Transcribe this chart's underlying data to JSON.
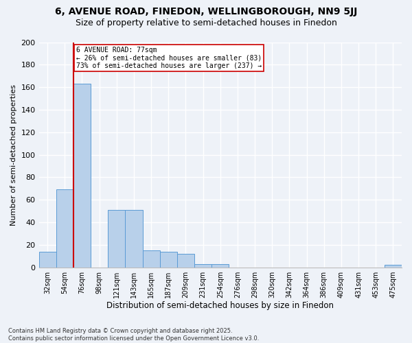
{
  "title1": "6, AVENUE ROAD, FINEDON, WELLINGBOROUGH, NN9 5JJ",
  "title2": "Size of property relative to semi-detached houses in Finedon",
  "xlabel": "Distribution of semi-detached houses by size in Finedon",
  "ylabel": "Number of semi-detached properties",
  "categories": [
    "32sqm",
    "54sqm",
    "76sqm",
    "98sqm",
    "121sqm",
    "143sqm",
    "165sqm",
    "187sqm",
    "209sqm",
    "231sqm",
    "254sqm",
    "276sqm",
    "298sqm",
    "320sqm",
    "342sqm",
    "364sqm",
    "386sqm",
    "409sqm",
    "431sqm",
    "453sqm",
    "475sqm"
  ],
  "values": [
    14,
    69,
    163,
    0,
    51,
    51,
    15,
    14,
    12,
    3,
    3,
    0,
    0,
    0,
    0,
    0,
    0,
    0,
    0,
    0,
    2
  ],
  "bar_color": "#b8d0ea",
  "bar_edge_color": "#5b9bd5",
  "subject_line_idx": 2,
  "subject_label": "6 AVENUE ROAD: 77sqm",
  "pct_smaller": 26,
  "n_smaller": 83,
  "pct_larger": 73,
  "n_larger": 237,
  "annotation_box_color": "#cc0000",
  "ylim": [
    0,
    200
  ],
  "yticks": [
    0,
    20,
    40,
    60,
    80,
    100,
    120,
    140,
    160,
    180,
    200
  ],
  "footer": "Contains HM Land Registry data © Crown copyright and database right 2025.\nContains public sector information licensed under the Open Government Licence v3.0.",
  "background_color": "#eef2f8",
  "grid_color": "#ffffff",
  "title_fontsize": 10,
  "subtitle_fontsize": 9,
  "bar_width": 1.0
}
